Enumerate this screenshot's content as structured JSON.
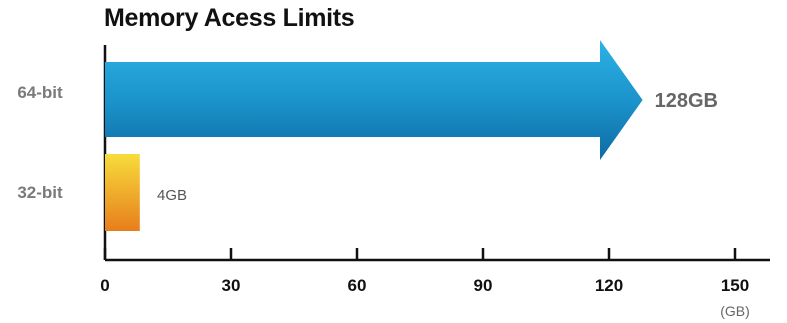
{
  "chart_data": {
    "type": "bar",
    "title": "Memory Acess Limits",
    "categories": [
      "64-bit",
      "32-bit"
    ],
    "values": [
      128,
      4
    ],
    "value_labels": [
      "128GB",
      "4GB"
    ],
    "xlim": [
      0,
      150
    ],
    "xticks": [
      0,
      30,
      60,
      90,
      120,
      150
    ],
    "x_unit": "(GB)",
    "colors": {
      "64-bit": [
        "#26a6d9",
        "#1478b0"
      ],
      "32-bit": [
        "#f6d63a",
        "#e8851e"
      ]
    },
    "orientation": "horizontal",
    "grid": false
  }
}
